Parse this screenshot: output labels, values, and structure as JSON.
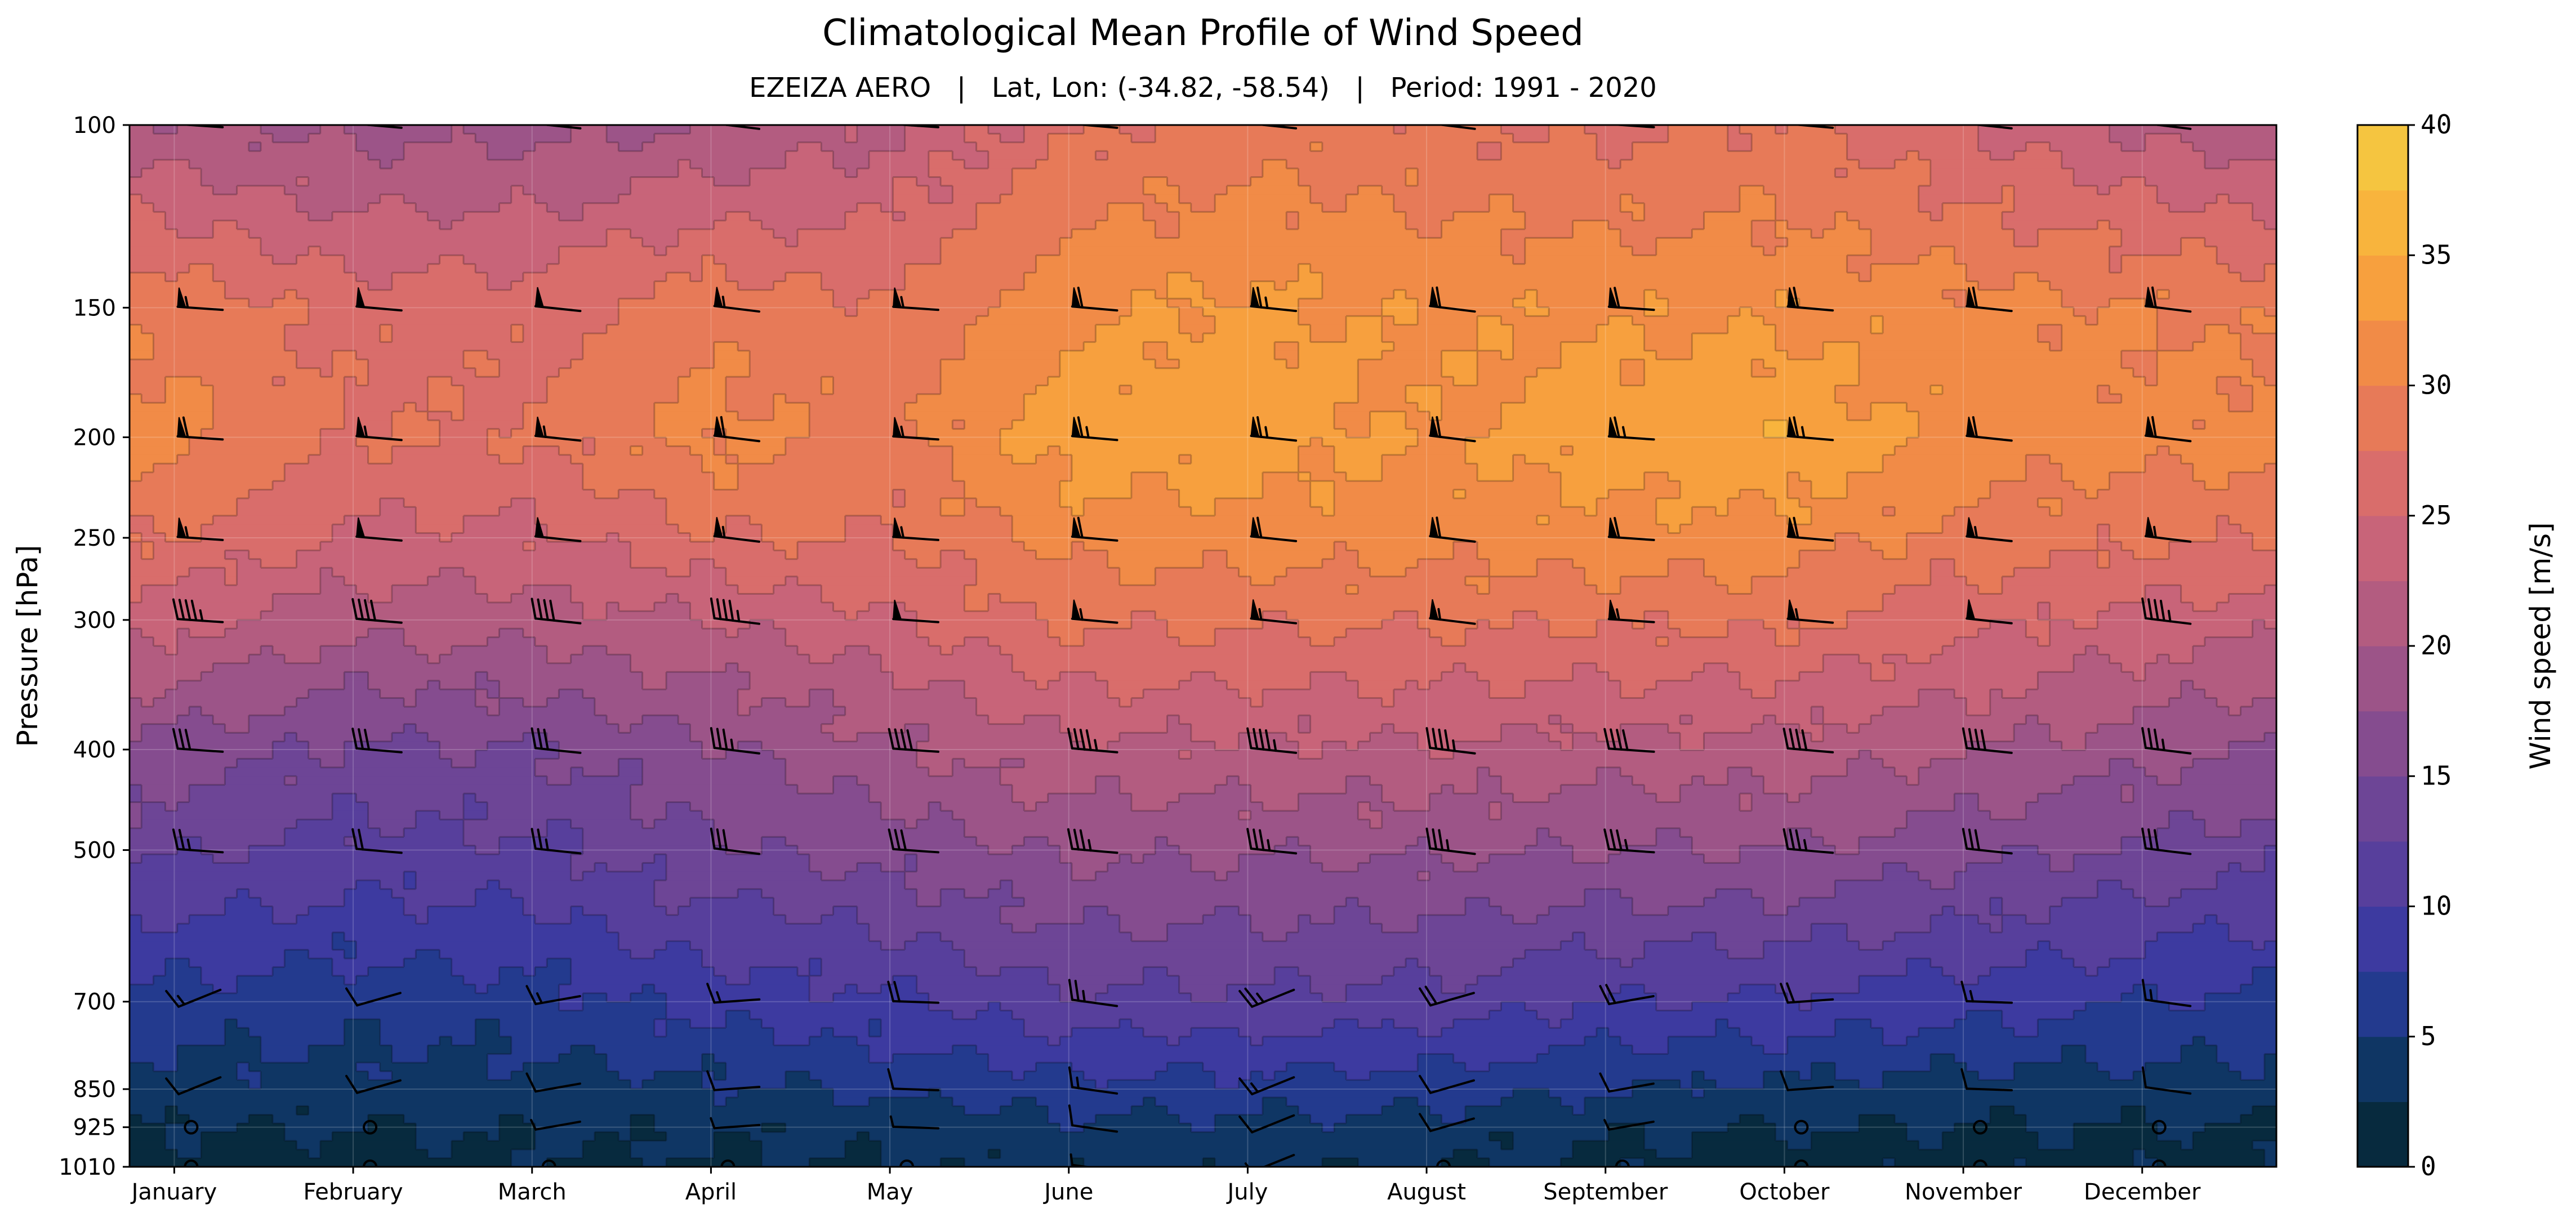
{
  "chart_data": {
    "type": "heatmap",
    "title": "Climatological Mean Profile of Wind Speed",
    "subtitle": "EZEIZA AERO   |   Lat, Lon: (-34.82, -58.54)   |   Period: 1991 - 2020",
    "ylabel": "Pressure [hPa]",
    "colorbar_label": "Wind speed [m/s]",
    "x": [
      "January",
      "February",
      "March",
      "April",
      "May",
      "June",
      "July",
      "August",
      "September",
      "October",
      "November",
      "December"
    ],
    "pressure_levels": [
      100,
      150,
      200,
      250,
      300,
      400,
      500,
      700,
      850,
      925,
      1010
    ],
    "y_scale": "log",
    "ylim": [
      1010,
      100
    ],
    "colorbar_ticks": [
      0,
      5,
      10,
      15,
      20,
      25,
      30,
      35,
      40
    ],
    "contour_step": 2.5,
    "vmin": 0,
    "vmax": 40,
    "colors": [
      "#072a3e",
      "#0f3664",
      "#233a8e",
      "#3d3aa0",
      "#573f9c",
      "#6d4596",
      "#854c8f",
      "#9c5488",
      "#b35c80",
      "#c86479",
      "#d96d6b",
      "#e77a58",
      "#f18b47",
      "#f7a03e",
      "#f8b43d",
      "#f5c540",
      "#f3d644",
      "#e8ef52"
    ],
    "wind_speed": [
      [
        20.5,
        19,
        19,
        20,
        22,
        27,
        29,
        28,
        27,
        28,
        25,
        22
      ],
      [
        29,
        26.5,
        26.5,
        29,
        28,
        32,
        33,
        32,
        32,
        32,
        31,
        30
      ],
      [
        31,
        27.5,
        27.5,
        31,
        29,
        34,
        34,
        32,
        34,
        34.5,
        31.5,
        31
      ],
      [
        27.5,
        24.5,
        24.5,
        27.5,
        27.5,
        31,
        31.5,
        31,
        31.5,
        31.5,
        29,
        28
      ],
      [
        23.5,
        21,
        21,
        22.5,
        24.5,
        28,
        28,
        28,
        28,
        28,
        26,
        24
      ],
      [
        16.5,
        14.5,
        15,
        17,
        19.5,
        22,
        22,
        22,
        21.5,
        21.5,
        20,
        18.5
      ],
      [
        13,
        11.5,
        12,
        14.5,
        16,
        18,
        18,
        18,
        17.5,
        17.5,
        16,
        14.5
      ],
      [
        6.5,
        6,
        6.5,
        8.5,
        9.5,
        12,
        12,
        11.5,
        10,
        9.5,
        8.5,
        7.5
      ],
      [
        4,
        4,
        4,
        4.5,
        5.5,
        6.5,
        6.5,
        6,
        5,
        4.5,
        4,
        4
      ],
      [
        2.5,
        2.5,
        3,
        3,
        3.5,
        4.5,
        4.5,
        4,
        3,
        2.5,
        2.5,
        2.5
      ],
      [
        1.5,
        1.5,
        2,
        2,
        2.5,
        3,
        3,
        2.5,
        2,
        1.5,
        1.5,
        1.5
      ]
    ]
  }
}
